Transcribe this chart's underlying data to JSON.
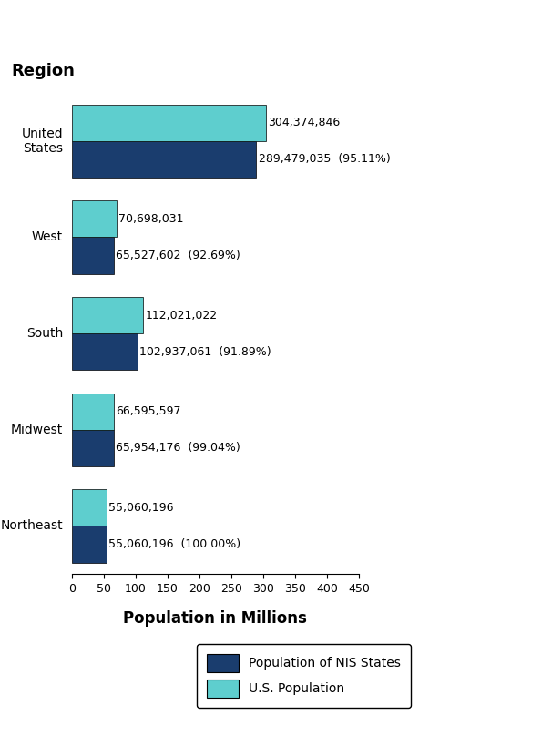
{
  "regions": [
    "United\nStates",
    "West",
    "South",
    "Midwest",
    "Northeast"
  ],
  "nis_values": [
    289479035,
    65527602,
    102937061,
    65954176,
    55060196
  ],
  "us_values": [
    304374846,
    70698031,
    112021022,
    66595597,
    55060196
  ],
  "nis_labels": [
    "289,479,035  (95.11%)",
    "65,527,602  (92.69%)",
    "102,937,061  (91.89%)",
    "65,954,176  (99.04%)",
    "55,060,196  (100.00%)"
  ],
  "us_labels": [
    "304,374,846",
    "70,698,031",
    "112,021,022",
    "66,595,597",
    "55,060,196"
  ],
  "nis_color": "#1a3d6e",
  "us_color": "#5ecece",
  "title": "Region",
  "xlabel": "Population in Millions",
  "scale": 1000000,
  "xlim": [
    0,
    450
  ],
  "xticks": [
    0,
    50,
    100,
    150,
    200,
    250,
    300,
    350,
    400,
    450
  ],
  "bar_height": 0.38,
  "background_color": "#ffffff",
  "legend_labels": [
    "Population of NIS States",
    "U.S. Population"
  ],
  "title_fontsize": 13,
  "label_fontsize": 9,
  "tick_fontsize": 9
}
